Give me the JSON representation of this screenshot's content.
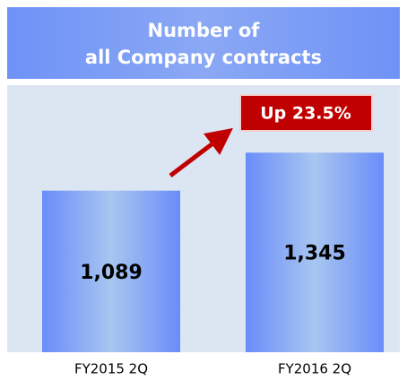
{
  "chart_data": {
    "type": "bar",
    "title": [
      "Number of",
      "all Company contracts"
    ],
    "categories": [
      "FY2015 2Q",
      "FY2016 2Q"
    ],
    "values": [
      1089,
      1345
    ],
    "value_labels": [
      "1,089",
      "1,345"
    ],
    "color": "#6a8cfa",
    "ylim": [
      0,
      1800
    ],
    "annotation": "Up 23.5%",
    "annotation_color": "#c00000"
  }
}
